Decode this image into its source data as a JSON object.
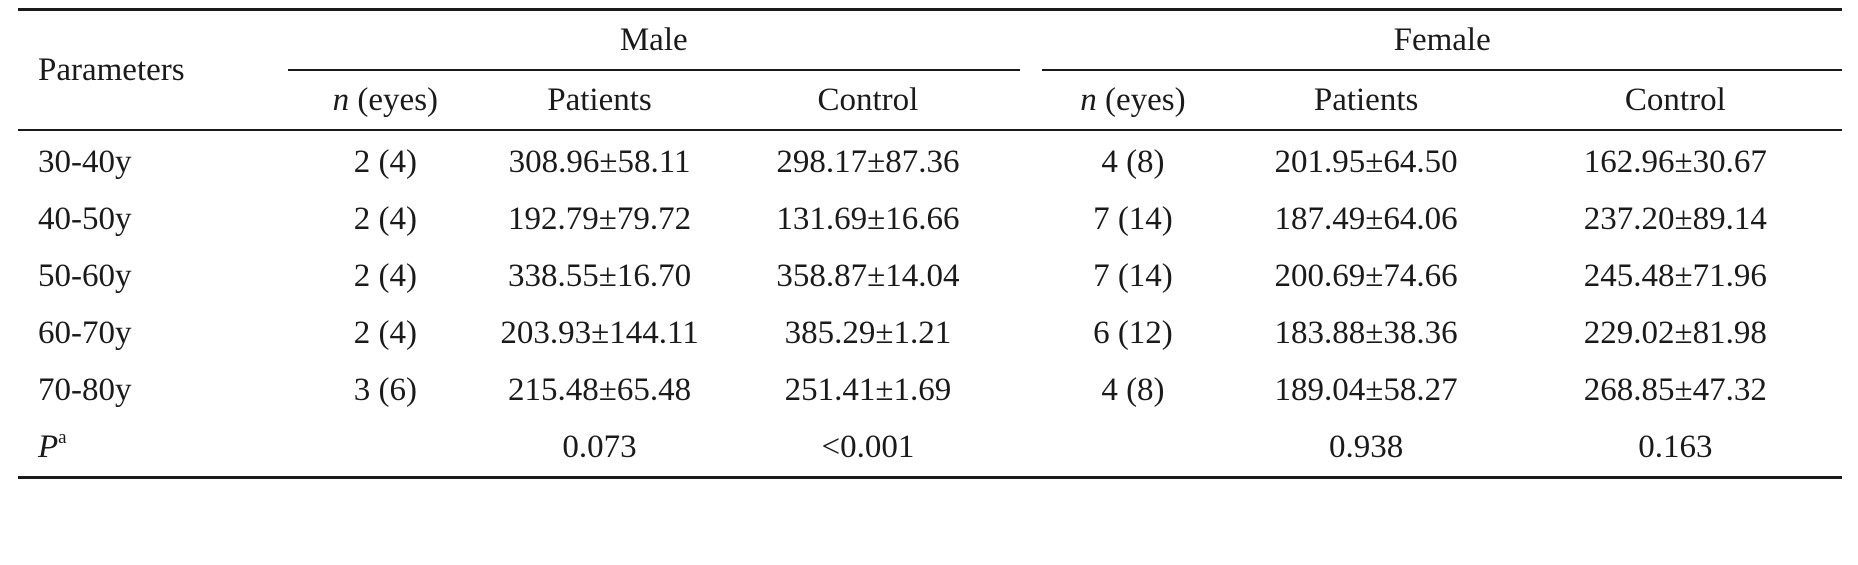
{
  "table": {
    "header": {
      "parameters": "Parameters",
      "male": "Male",
      "female": "Female",
      "n_italic": "n",
      "n_rest": " (eyes)",
      "patients": "Patients",
      "control": "Control"
    },
    "rows": [
      {
        "param": "30-40y",
        "male_n": "2 (4)",
        "male_patients": "308.96±58.11",
        "male_control": "298.17±87.36",
        "female_n": "4 (8)",
        "female_patients": "201.95±64.50",
        "female_control": "162.96±30.67"
      },
      {
        "param": "40-50y",
        "male_n": "2 (4)",
        "male_patients": "192.79±79.72",
        "male_control": "131.69±16.66",
        "female_n": "7 (14)",
        "female_patients": "187.49±64.06",
        "female_control": "237.20±89.14"
      },
      {
        "param": "50-60y",
        "male_n": "2 (4)",
        "male_patients": "338.55±16.70",
        "male_control": "358.87±14.04",
        "female_n": "7 (14)",
        "female_patients": "200.69±74.66",
        "female_control": "245.48±71.96"
      },
      {
        "param": "60-70y",
        "male_n": "2 (4)",
        "male_patients": "203.93±144.11",
        "male_control": "385.29±1.21",
        "female_n": "6 (12)",
        "female_patients": "183.88±38.36",
        "female_control": "229.02±81.98"
      },
      {
        "param": "70-80y",
        "male_n": "3 (6)",
        "male_patients": "215.48±65.48",
        "male_control": "251.41±1.69",
        "female_n": "4 (8)",
        "female_patients": "189.04±58.27",
        "female_control": "268.85±47.32"
      }
    ],
    "p_row": {
      "label": "P",
      "superscript": "a",
      "male_n": "",
      "male_patients": "0.073",
      "male_control": "<0.001",
      "female_n": "",
      "female_patients": "0.938",
      "female_control": "0.163"
    }
  }
}
